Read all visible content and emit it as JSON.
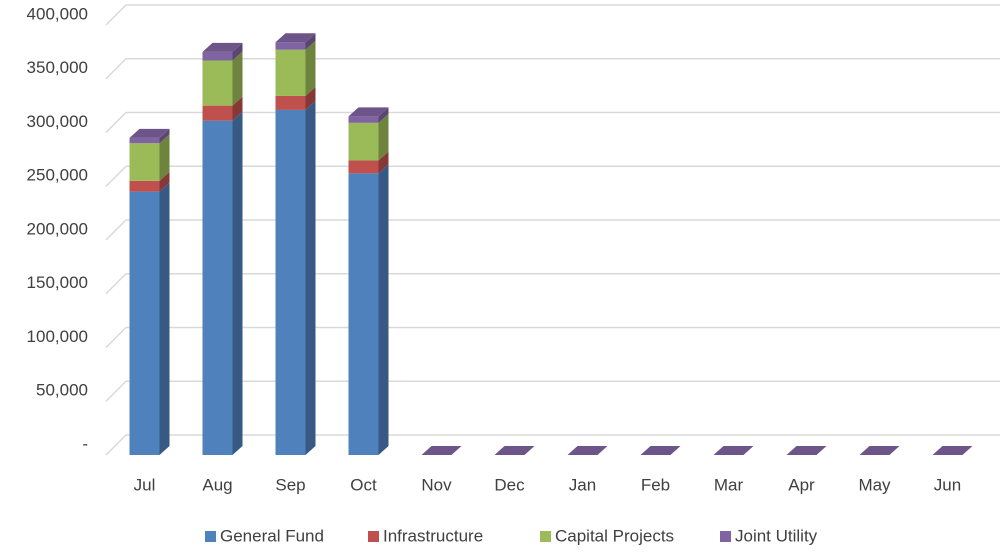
{
  "chart_data": {
    "type": "bar",
    "categories": [
      "Jul",
      "Aug",
      "Sep",
      "Oct",
      "Nov",
      "Dec",
      "Jan",
      "Feb",
      "Mar",
      "Apr",
      "May",
      "Jun"
    ],
    "series": [
      {
        "name": "General Fund",
        "color": "#4f81bd",
        "values": [
          245000,
          311000,
          321000,
          262000,
          0,
          0,
          0,
          0,
          0,
          0,
          0,
          0
        ]
      },
      {
        "name": "Infrastructure",
        "color": "#c0504d",
        "values": [
          10000,
          14000,
          13000,
          12000,
          0,
          0,
          0,
          0,
          0,
          0,
          0,
          0
        ]
      },
      {
        "name": "Capital Projects",
        "color": "#9bbb59",
        "values": [
          35000,
          42000,
          43000,
          35000,
          0,
          0,
          0,
          0,
          0,
          0,
          0,
          0
        ]
      },
      {
        "name": "Joint Utility",
        "color": "#8064a2",
        "values": [
          5000,
          8000,
          7000,
          6000,
          0,
          0,
          0,
          0,
          0,
          0,
          0,
          0
        ]
      }
    ],
    "stacked": true,
    "ylim": [
      0,
      400000
    ],
    "yticks": [
      {
        "value": 0,
        "label": "-"
      },
      {
        "value": 50000,
        "label": "50,000"
      },
      {
        "value": 100000,
        "label": "100,000"
      },
      {
        "value": 150000,
        "label": "150,000"
      },
      {
        "value": 200000,
        "label": "200,000"
      },
      {
        "value": 250000,
        "label": "250,000"
      },
      {
        "value": 300000,
        "label": "300,000"
      },
      {
        "value": 350000,
        "label": "350,000"
      },
      {
        "value": 400000,
        "label": "400,000"
      }
    ],
    "grid": true,
    "legend": "bottom"
  }
}
